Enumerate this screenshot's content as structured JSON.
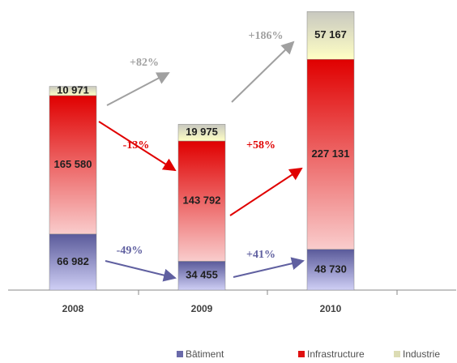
{
  "chart_data": {
    "type": "stacked-bar",
    "categories": [
      "2008",
      "2009",
      "2010"
    ],
    "series": [
      {
        "name": "Bâtiment",
        "color": "#6a6aaa",
        "values": [
          66982,
          34455,
          48730
        ],
        "value_labels": [
          "66 982",
          "34 455",
          "48 730"
        ]
      },
      {
        "name": "Infrastructure",
        "color": "#e01010",
        "values": [
          165580,
          143792,
          227131
        ],
        "value_labels": [
          "165 580",
          "143 792",
          "227 131"
        ]
      },
      {
        "name": "Industrie",
        "color": "#dcdcb4",
        "values": [
          10971,
          19975,
          57167
        ],
        "value_labels": [
          "10 971",
          "19 975",
          "57 167"
        ]
      }
    ],
    "ylim": [
      0,
      340000
    ],
    "annotations": [
      {
        "text": "+82%",
        "color": "#a0a0a0"
      },
      {
        "text": "-13%",
        "color": "#e00000"
      },
      {
        "text": "-49%",
        "color": "#6060a0"
      },
      {
        "text": "+186%",
        "color": "#a0a0a0"
      },
      {
        "text": "+58%",
        "color": "#e00000"
      },
      {
        "text": "+41%",
        "color": "#6060a0"
      }
    ],
    "legend": "bottom"
  }
}
